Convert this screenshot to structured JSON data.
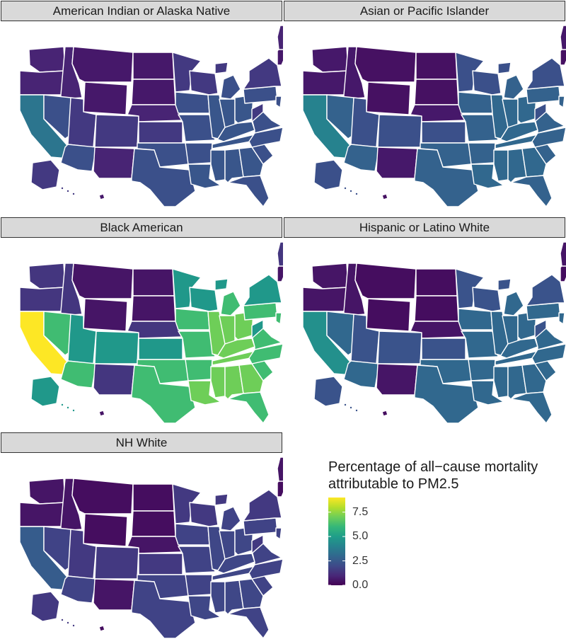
{
  "panels": [
    {
      "title": "American Indian or Alaska Native",
      "scheme": [
        0.6,
        0.9,
        1.5,
        2.2,
        2.4,
        3.5
      ]
    },
    {
      "title": "Asian or Pacific Islander",
      "scheme": [
        0.4,
        0.6,
        2.2,
        2.8,
        3.0,
        4.0
      ]
    },
    {
      "title": "Black American",
      "scheme": [
        0.5,
        1.4,
        4.8,
        6.2,
        7.0,
        9.0
      ]
    },
    {
      "title": "Hispanic or Latino White",
      "scheme": [
        0.3,
        0.5,
        2.3,
        3.0,
        3.0,
        4.5
      ]
    },
    {
      "title": "NH White",
      "scheme": [
        0.3,
        0.5,
        1.5,
        1.8,
        1.9,
        2.6
      ]
    }
  ],
  "legend": {
    "title_line1": "Percentage of all−cause mortality",
    "title_line2": "attributable to PM2.5",
    "ticks": [
      "7.5",
      "5.0",
      "2.5",
      "0.0"
    ],
    "tick_values": [
      7.5,
      5.0,
      2.5,
      0.0
    ],
    "range": [
      0,
      9.0
    ]
  },
  "colors": {
    "viridis": [
      "#440154",
      "#482878",
      "#3e4a89",
      "#31688e",
      "#26828e",
      "#1f9e89",
      "#35b779",
      "#6ece58",
      "#b5de2b",
      "#fde725"
    ],
    "border": "#ffffff",
    "strip": "#d9d9d9"
  }
}
